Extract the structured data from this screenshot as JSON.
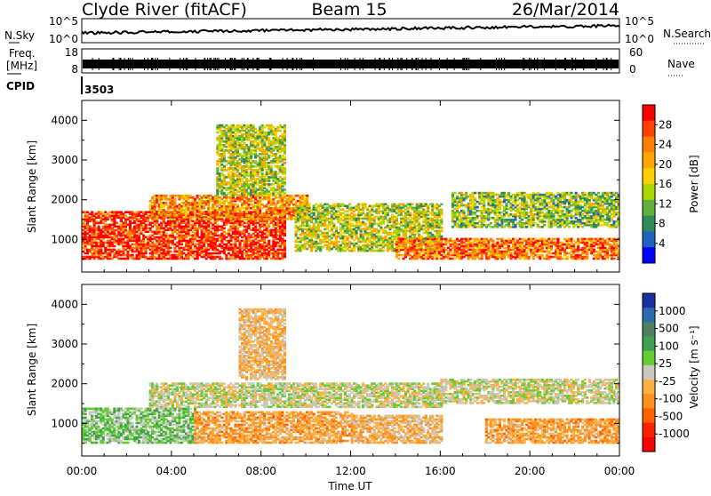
{
  "header": {
    "station": "Clyde River (fitACF)",
    "beam": "Beam 15",
    "date": "26/Mar/2014"
  },
  "panels": {
    "nsky_label": "N.Sky",
    "nsearch_label": "N.Search",
    "nsky_ticks": [
      "10^5",
      "10^0"
    ],
    "nsearch_ticks": [
      "10^5",
      "10^0"
    ],
    "freq_label_top": "Freq.",
    "freq_label_bottom": "[MHz]",
    "freq_ticks": [
      "18",
      "8"
    ],
    "nave_label": "Nave",
    "nave_ticks": [
      "60",
      "0"
    ],
    "cpid_label": "CPID",
    "cpid_value": "3503"
  },
  "colorbars": {
    "power": {
      "title": "Power [dB]",
      "labels": [
        "28",
        "24",
        "20",
        "16",
        "12",
        "8",
        "4"
      ],
      "colors": [
        "#ff0000",
        "#ff4000",
        "#ff7f00",
        "#ffa500",
        "#ffd000",
        "#a8d800",
        "#60b040",
        "#2e8b57",
        "#2060c0",
        "#0000ff"
      ]
    },
    "velocity": {
      "title": "Velocity [m s⁻¹]",
      "labels": [
        "1000",
        "500",
        "100",
        "25",
        "-25",
        "-100",
        "-500",
        "-1000"
      ],
      "colors": [
        "#1a30a0",
        "#2a6ab0",
        "#4c8060",
        "#3fa050",
        "#66cc33",
        "#c8c8c0",
        "#ffb040",
        "#ff9020",
        "#ff6000",
        "#ff2000",
        "#ff0000"
      ]
    }
  },
  "axes": {
    "ylabel": "Slant Range [km]",
    "xlabel": "Time UT",
    "y_ticks": [
      "1000",
      "2000",
      "3000",
      "4000"
    ],
    "x_ticks": [
      "00:00",
      "04:00",
      "08:00",
      "12:00",
      "16:00",
      "20:00",
      "00:00"
    ]
  },
  "chart_data": [
    {
      "type": "heatmap",
      "title": "",
      "xlabel": "Time UT",
      "ylabel": "Slant Range [km]",
      "x_range_hours": [
        0,
        24
      ],
      "y_range_km": [
        180,
        4500
      ],
      "z_label": "Power [dB]",
      "z_range": [
        0,
        30
      ],
      "regions": [
        {
          "t": [
            0,
            9
          ],
          "r": [
            500,
            1700
          ],
          "power": 28
        },
        {
          "t": [
            3,
            10
          ],
          "r": [
            1500,
            2100
          ],
          "power": 22
        },
        {
          "t": [
            6,
            9
          ],
          "r": [
            2100,
            3900
          ],
          "power": 14
        },
        {
          "t": [
            9.5,
            16
          ],
          "r": [
            700,
            1900
          ],
          "power": 14
        },
        {
          "t": [
            14,
            24
          ],
          "r": [
            500,
            1000
          ],
          "power": 24
        },
        {
          "t": [
            16.5,
            24
          ],
          "r": [
            1300,
            2200
          ],
          "power": 12
        }
      ]
    },
    {
      "type": "heatmap",
      "title": "",
      "xlabel": "Time UT",
      "ylabel": "Slant Range [km]",
      "x_range_hours": [
        0,
        24
      ],
      "y_range_km": [
        180,
        4500
      ],
      "z_label": "Velocity [m s⁻¹]",
      "z_range": [
        -1000,
        1000
      ],
      "regions": [
        {
          "t": [
            0,
            5
          ],
          "r": [
            500,
            1400
          ],
          "velocity": 200
        },
        {
          "t": [
            3,
            16
          ],
          "r": [
            1400,
            2000
          ],
          "velocity": 0
        },
        {
          "t": [
            5,
            12
          ],
          "r": [
            500,
            1300
          ],
          "velocity": -300
        },
        {
          "t": [
            7,
            9
          ],
          "r": [
            2100,
            3900
          ],
          "velocity": -200
        },
        {
          "t": [
            12,
            16
          ],
          "r": [
            500,
            1200
          ],
          "velocity": -200
        },
        {
          "t": [
            16,
            24
          ],
          "r": [
            1500,
            2100
          ],
          "velocity": 0
        },
        {
          "t": [
            18,
            24
          ],
          "r": [
            500,
            1100
          ],
          "velocity": -300
        }
      ]
    },
    {
      "type": "line",
      "name": "N.Sky",
      "x_range_hours": [
        0,
        24
      ],
      "yscale": "log",
      "ylim": [
        1,
        100000
      ]
    },
    {
      "type": "line",
      "name": "Freq.",
      "x_range_hours": [
        0,
        24
      ],
      "y_unit": "MHz",
      "ylim": [
        8,
        18
      ],
      "approx_value": 11
    }
  ]
}
